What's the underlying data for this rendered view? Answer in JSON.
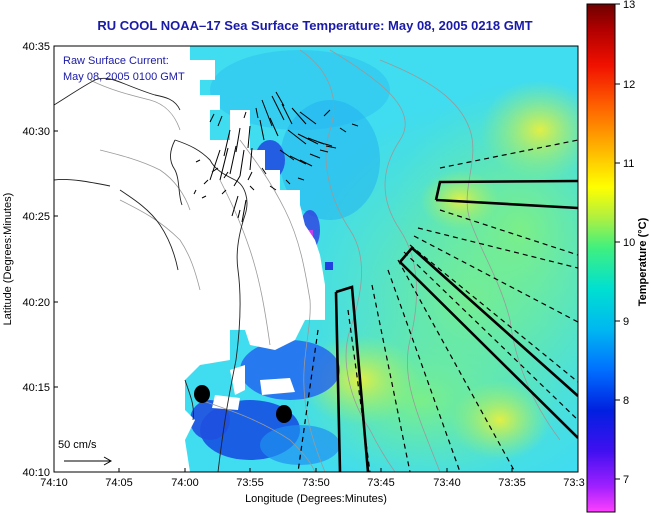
{
  "title": "RU COOL  NOAA–17  Sea Surface Temperature:  May 08, 2005 0218 GMT",
  "legend": {
    "line1": "Raw Surface Current:",
    "line2": "May 08, 2005 0100 GMT"
  },
  "scale_label": "50 cm/s",
  "x_axis": {
    "label": "Longitude (Degrees:Minutes)",
    "ticks": [
      "74:10",
      "74:05",
      "74:00",
      "73:55",
      "73:50",
      "73:45",
      "73:40",
      "73:35",
      "73:3"
    ]
  },
  "y_axis": {
    "label": "Latitude (Degrees:Minutes)",
    "ticks": [
      "40:35",
      "40:30",
      "40:25",
      "40:20",
      "40:15",
      "40:10"
    ]
  },
  "colorbar": {
    "label": "Temperature (°C)",
    "ticks": [
      "13",
      "12",
      "11",
      "10",
      "9",
      "8",
      "7"
    ],
    "colors": [
      "#ff40ff",
      "#8000ff",
      "#0000e0",
      "#0080ff",
      "#00e0e0",
      "#00f0a0",
      "#b0f040",
      "#ffff00",
      "#ffa000",
      "#ff3000",
      "#c00000",
      "#800000"
    ]
  },
  "colors": {
    "ocean_base": "#40dcf0",
    "land": "#ffffff",
    "title_text": "#1a1aa8"
  }
}
